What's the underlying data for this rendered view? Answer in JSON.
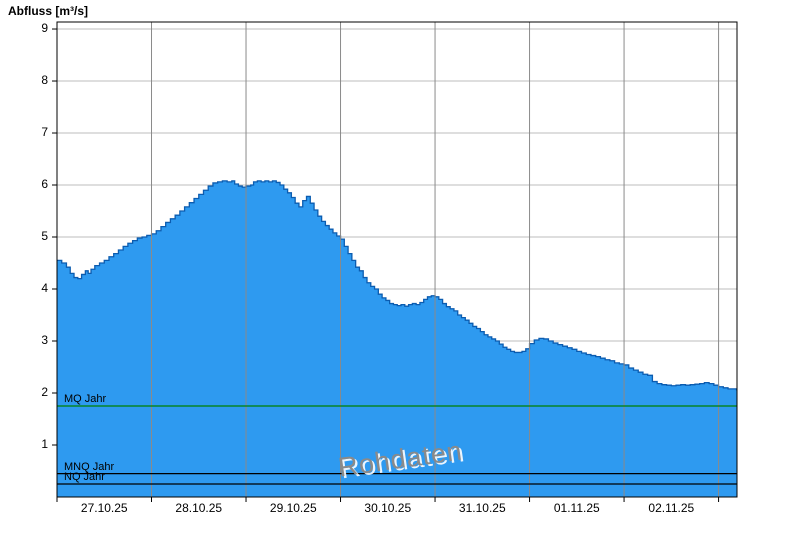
{
  "chart_data": {
    "type": "area",
    "title": "Abfluss [m³/s]",
    "watermark": "Rohdaten",
    "ylabel": "Abfluss [m³/s]",
    "xlabel": "",
    "ylim": [
      0,
      9.135
    ],
    "xlim_days": [
      0,
      7.195
    ],
    "grid": true,
    "y_ticks": [
      1,
      2,
      3,
      4,
      5,
      6,
      7,
      8,
      9
    ],
    "x_tick_labels": [
      "27.10.25",
      "28.10.25",
      "29.10.25",
      "30.10.25",
      "31.10.25",
      "01.11.25",
      "02.11.25"
    ],
    "reference_lines": [
      {
        "label": "MQ Jahr",
        "value": 1.75,
        "color": "#008000"
      },
      {
        "label": "MNQ Jahr",
        "value": 0.45,
        "color": "#000000"
      },
      {
        "label": "NQ Jahr",
        "value": 0.25,
        "color": "#000000"
      }
    ],
    "colors": {
      "fill": "#2E9AF0",
      "outline": "#0B5CB0",
      "hgrid": "#bdbdbd",
      "vgrid": "#8a8a8a",
      "axis": "#000000"
    },
    "series": [
      {
        "name": "Abfluss Rohdaten",
        "unit": "m³/s",
        "points": [
          [
            0.0,
            4.55
          ],
          [
            0.05,
            4.5
          ],
          [
            0.1,
            4.42
          ],
          [
            0.14,
            4.3
          ],
          [
            0.18,
            4.22
          ],
          [
            0.22,
            4.2
          ],
          [
            0.26,
            4.28
          ],
          [
            0.3,
            4.35
          ],
          [
            0.33,
            4.3
          ],
          [
            0.36,
            4.38
          ],
          [
            0.4,
            4.45
          ],
          [
            0.45,
            4.5
          ],
          [
            0.5,
            4.55
          ],
          [
            0.55,
            4.62
          ],
          [
            0.6,
            4.68
          ],
          [
            0.65,
            4.75
          ],
          [
            0.7,
            4.82
          ],
          [
            0.75,
            4.88
          ],
          [
            0.8,
            4.93
          ],
          [
            0.85,
            4.98
          ],
          [
            0.9,
            5.0
          ],
          [
            0.95,
            5.03
          ],
          [
            1.0,
            5.06
          ],
          [
            1.05,
            5.12
          ],
          [
            1.1,
            5.2
          ],
          [
            1.15,
            5.28
          ],
          [
            1.2,
            5.35
          ],
          [
            1.25,
            5.42
          ],
          [
            1.3,
            5.5
          ],
          [
            1.35,
            5.58
          ],
          [
            1.4,
            5.66
          ],
          [
            1.45,
            5.74
          ],
          [
            1.5,
            5.82
          ],
          [
            1.55,
            5.9
          ],
          [
            1.6,
            5.98
          ],
          [
            1.65,
            6.04
          ],
          [
            1.7,
            6.06
          ],
          [
            1.75,
            6.08
          ],
          [
            1.8,
            6.06
          ],
          [
            1.85,
            6.08
          ],
          [
            1.88,
            6.02
          ],
          [
            1.92,
            5.98
          ],
          [
            1.96,
            5.96
          ],
          [
            2.0,
            5.98
          ],
          [
            2.05,
            6.0
          ],
          [
            2.08,
            6.06
          ],
          [
            2.12,
            6.08
          ],
          [
            2.16,
            6.06
          ],
          [
            2.2,
            6.08
          ],
          [
            2.24,
            6.06
          ],
          [
            2.28,
            6.08
          ],
          [
            2.32,
            6.05
          ],
          [
            2.36,
            6.0
          ],
          [
            2.4,
            5.92
          ],
          [
            2.44,
            5.85
          ],
          [
            2.48,
            5.76
          ],
          [
            2.52,
            5.65
          ],
          [
            2.56,
            5.58
          ],
          [
            2.6,
            5.7
          ],
          [
            2.64,
            5.78
          ],
          [
            2.68,
            5.65
          ],
          [
            2.72,
            5.52
          ],
          [
            2.76,
            5.4
          ],
          [
            2.8,
            5.3
          ],
          [
            2.84,
            5.22
          ],
          [
            2.88,
            5.15
          ],
          [
            2.92,
            5.08
          ],
          [
            2.96,
            5.02
          ],
          [
            3.0,
            4.96
          ],
          [
            3.04,
            4.82
          ],
          [
            3.08,
            4.68
          ],
          [
            3.12,
            4.55
          ],
          [
            3.16,
            4.42
          ],
          [
            3.2,
            4.35
          ],
          [
            3.24,
            4.22
          ],
          [
            3.28,
            4.12
          ],
          [
            3.32,
            4.05
          ],
          [
            3.36,
            4.0
          ],
          [
            3.4,
            3.9
          ],
          [
            3.44,
            3.83
          ],
          [
            3.48,
            3.78
          ],
          [
            3.52,
            3.72
          ],
          [
            3.56,
            3.7
          ],
          [
            3.6,
            3.68
          ],
          [
            3.64,
            3.7
          ],
          [
            3.68,
            3.67
          ],
          [
            3.72,
            3.7
          ],
          [
            3.76,
            3.72
          ],
          [
            3.8,
            3.7
          ],
          [
            3.84,
            3.74
          ],
          [
            3.88,
            3.8
          ],
          [
            3.92,
            3.85
          ],
          [
            3.96,
            3.87
          ],
          [
            4.0,
            3.85
          ],
          [
            4.04,
            3.8
          ],
          [
            4.08,
            3.72
          ],
          [
            4.12,
            3.66
          ],
          [
            4.16,
            3.62
          ],
          [
            4.2,
            3.58
          ],
          [
            4.24,
            3.5
          ],
          [
            4.28,
            3.45
          ],
          [
            4.32,
            3.4
          ],
          [
            4.36,
            3.34
          ],
          [
            4.4,
            3.28
          ],
          [
            4.44,
            3.24
          ],
          [
            4.48,
            3.18
          ],
          [
            4.52,
            3.12
          ],
          [
            4.56,
            3.08
          ],
          [
            4.6,
            3.04
          ],
          [
            4.64,
            3.0
          ],
          [
            4.68,
            2.94
          ],
          [
            4.72,
            2.88
          ],
          [
            4.76,
            2.84
          ],
          [
            4.8,
            2.8
          ],
          [
            4.84,
            2.78
          ],
          [
            4.88,
            2.78
          ],
          [
            4.92,
            2.8
          ],
          [
            4.96,
            2.85
          ],
          [
            5.0,
            2.95
          ],
          [
            5.05,
            3.02
          ],
          [
            5.1,
            3.05
          ],
          [
            5.15,
            3.04
          ],
          [
            5.2,
            3.0
          ],
          [
            5.25,
            2.96
          ],
          [
            5.3,
            2.93
          ],
          [
            5.35,
            2.9
          ],
          [
            5.4,
            2.87
          ],
          [
            5.45,
            2.84
          ],
          [
            5.5,
            2.8
          ],
          [
            5.55,
            2.77
          ],
          [
            5.6,
            2.74
          ],
          [
            5.65,
            2.72
          ],
          [
            5.7,
            2.7
          ],
          [
            5.75,
            2.67
          ],
          [
            5.8,
            2.64
          ],
          [
            5.85,
            2.62
          ],
          [
            5.9,
            2.58
          ],
          [
            5.95,
            2.56
          ],
          [
            6.0,
            2.54
          ],
          [
            6.05,
            2.48
          ],
          [
            6.1,
            2.44
          ],
          [
            6.15,
            2.4
          ],
          [
            6.2,
            2.36
          ],
          [
            6.25,
            2.34
          ],
          [
            6.3,
            2.22
          ],
          [
            6.35,
            2.18
          ],
          [
            6.4,
            2.16
          ],
          [
            6.45,
            2.15
          ],
          [
            6.5,
            2.14
          ],
          [
            6.55,
            2.15
          ],
          [
            6.6,
            2.16
          ],
          [
            6.65,
            2.15
          ],
          [
            6.7,
            2.16
          ],
          [
            6.75,
            2.17
          ],
          [
            6.8,
            2.18
          ],
          [
            6.85,
            2.2
          ],
          [
            6.9,
            2.18
          ],
          [
            6.95,
            2.15
          ],
          [
            7.0,
            2.12
          ],
          [
            7.05,
            2.1
          ],
          [
            7.1,
            2.08
          ],
          [
            7.19,
            2.05
          ]
        ]
      }
    ]
  }
}
